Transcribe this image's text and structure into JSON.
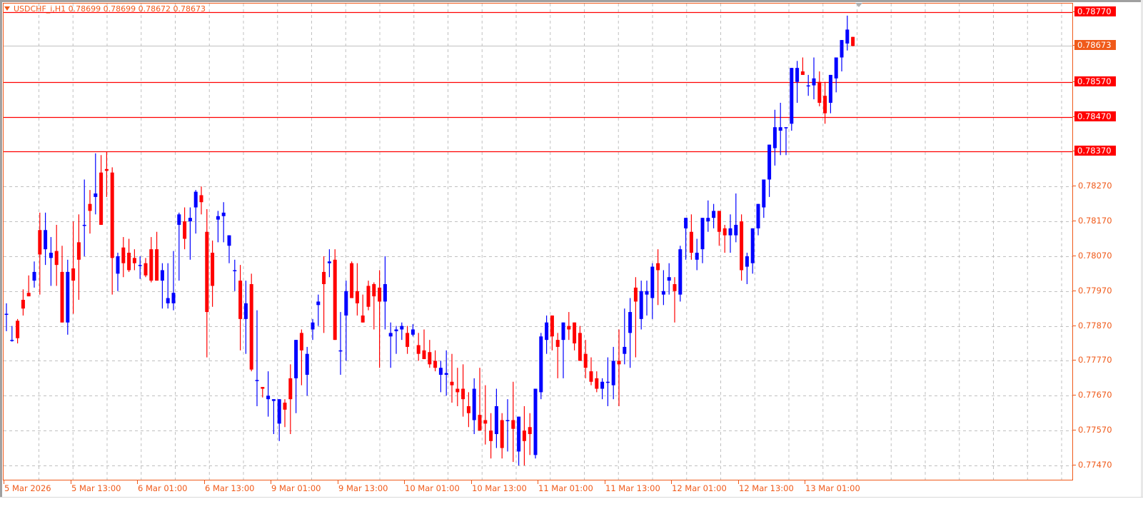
{
  "window": {
    "symbol": "USDCHF_i",
    "timeframe": "H1",
    "title": "USDCHF_i,H1  0.78699 0.78699 0.78672 0.78673",
    "ohlc_header": {
      "open": "0.78699",
      "high": "0.78699",
      "low": "0.78672",
      "close": "0.78673"
    }
  },
  "colors": {
    "bull": "#0000ff",
    "bear": "#ff0000",
    "axis": "#f05a1a",
    "grid": "#c0c0c0",
    "level_line": "#ff0000",
    "current_price_bg": "#f05a1a"
  },
  "chart_data": {
    "type": "candlestick",
    "title": "USDCHF_i,H1",
    "xlabel": "",
    "ylabel": "",
    "ylim": [
      0.7743,
      0.788
    ],
    "grid": true,
    "y_ticks": [
      "0.78770",
      "0.78673",
      "0.78570",
      "0.78470",
      "0.78370",
      "0.78270",
      "0.78170",
      "0.78070",
      "0.77970",
      "0.77870",
      "0.77770",
      "0.77670",
      "0.77570",
      "0.77470"
    ],
    "x_ticks": [
      "5 Mar 2026",
      "5 Mar 13:00",
      "6 Mar 01:00",
      "6 Mar 13:00",
      "9 Mar 01:00",
      "9 Mar 13:00",
      "10 Mar 01:00",
      "10 Mar 13:00",
      "11 Mar 01:00",
      "11 Mar 13:00",
      "12 Mar 01:00",
      "12 Mar 13:00",
      "13 Mar 01:00"
    ],
    "horizontal_levels": [
      {
        "price": "0.78770",
        "label": "0.78770"
      },
      {
        "price": "0.78570",
        "label": "0.78570"
      },
      {
        "price": "0.78470",
        "label": "0.78470"
      },
      {
        "price": "0.78370",
        "label": "0.78370"
      }
    ],
    "current_price": "0.78673",
    "candles_ohlc": [
      [
        0.77905,
        0.77935,
        0.77855,
        0.77905
      ],
      [
        0.7783,
        0.7787,
        0.77825,
        0.7783
      ],
      [
        0.77885,
        0.7789,
        0.7782,
        0.77835
      ],
      [
        0.77945,
        0.77975,
        0.779,
        0.7792
      ],
      [
        0.77965,
        0.78015,
        0.77955,
        0.77955
      ],
      [
        0.78,
        0.78055,
        0.7798,
        0.78025
      ],
      [
        0.78145,
        0.78195,
        0.7796,
        0.78075
      ],
      [
        0.7809,
        0.78195,
        0.78045,
        0.78145
      ],
      [
        0.78065,
        0.78125,
        0.77985,
        0.7808
      ],
      [
        0.78085,
        0.7816,
        0.77985,
        0.78045
      ],
      [
        0.78025,
        0.781,
        0.77885,
        0.7788
      ],
      [
        0.7788,
        0.7806,
        0.77845,
        0.78025
      ],
      [
        0.78035,
        0.7817,
        0.77905,
        0.78
      ],
      [
        0.7811,
        0.7819,
        0.77945,
        0.7806
      ],
      [
        0.7816,
        0.7829,
        0.7807,
        0.7816
      ],
      [
        0.7822,
        0.7826,
        0.78135,
        0.782
      ],
      [
        0.7824,
        0.78365,
        0.7819,
        0.7825
      ],
      [
        0.7831,
        0.7836,
        0.78195,
        0.7816
      ],
      [
        0.7832,
        0.7837,
        0.7824,
        0.78315
      ],
      [
        0.7831,
        0.78325,
        0.7796,
        0.78065
      ],
      [
        0.7802,
        0.7808,
        0.7797,
        0.7807
      ],
      [
        0.78095,
        0.78125,
        0.7801,
        0.7805
      ],
      [
        0.7808,
        0.7812,
        0.78025,
        0.7803
      ],
      [
        0.78065,
        0.7809,
        0.7803,
        0.7805
      ],
      [
        0.78045,
        0.7807,
        0.78005,
        0.78045
      ],
      [
        0.7805,
        0.78065,
        0.7801,
        0.78015
      ],
      [
        0.7809,
        0.78125,
        0.77995,
        0.78
      ],
      [
        0.7809,
        0.7814,
        0.7802,
        0.78
      ],
      [
        0.78,
        0.7805,
        0.7792,
        0.7803
      ],
      [
        0.77935,
        0.7805,
        0.7792,
        0.7795
      ],
      [
        0.77935,
        0.78085,
        0.77915,
        0.77965
      ],
      [
        0.7816,
        0.78195,
        0.78,
        0.7819
      ],
      [
        0.7817,
        0.7821,
        0.7809,
        0.7812
      ],
      [
        0.7817,
        0.7821,
        0.7806,
        0.7818
      ],
      [
        0.7821,
        0.7826,
        0.78135,
        0.78255
      ],
      [
        0.78245,
        0.7827,
        0.7819,
        0.78225
      ],
      [
        0.7814,
        0.78205,
        0.7778,
        0.7791
      ],
      [
        0.7808,
        0.78115,
        0.77925,
        0.77985
      ],
      [
        0.78175,
        0.782,
        0.7811,
        0.78185
      ],
      [
        0.78185,
        0.78225,
        0.7811,
        0.78195
      ],
      [
        0.781,
        0.7813,
        0.7805,
        0.7813
      ],
      [
        0.7803,
        0.7806,
        0.7797,
        0.7803
      ],
      [
        0.78,
        0.78045,
        0.778,
        0.7789
      ],
      [
        0.7789,
        0.78,
        0.7779,
        0.77935
      ],
      [
        0.7799,
        0.7802,
        0.7774,
        0.77745
      ],
      [
        0.77715,
        0.77915,
        0.7764,
        0.77715
      ],
      [
        0.77695,
        0.7768,
        0.77665,
        0.7769
      ],
      [
        0.7766,
        0.7774,
        0.7761,
        0.7767
      ],
      [
        0.77655,
        0.7766,
        0.7756,
        0.7766
      ],
      [
        0.7759,
        0.7764,
        0.7754,
        0.7766
      ],
      [
        0.7765,
        0.7766,
        0.7758,
        0.7763
      ],
      [
        0.7772,
        0.7776,
        0.7756,
        0.7766
      ],
      [
        0.7772,
        0.7779,
        0.7762,
        0.7783
      ],
      [
        0.7785,
        0.7786,
        0.777,
        0.778
      ],
      [
        0.7773,
        0.7781,
        0.7767,
        0.7779
      ],
      [
        0.7786,
        0.7789,
        0.7783,
        0.7788
      ],
      [
        0.7793,
        0.7796,
        0.7787,
        0.7794
      ],
      [
        0.78025,
        0.7807,
        0.7785,
        0.7799
      ],
      [
        0.7805,
        0.7809,
        0.7801,
        0.78055
      ],
      [
        0.7806,
        0.7809,
        0.7793,
        0.7783
      ],
      [
        0.778,
        0.7791,
        0.7773,
        0.778
      ],
      [
        0.779,
        0.78,
        0.7777,
        0.7797
      ],
      [
        0.7805,
        0.78055,
        0.7795,
        0.7795
      ],
      [
        0.7797,
        0.7805,
        0.779,
        0.77935
      ],
      [
        0.779,
        0.7796,
        0.7788,
        0.7788
      ],
      [
        0.77985,
        0.78,
        0.77915,
        0.77925
      ],
      [
        0.7799,
        0.77995,
        0.7786,
        0.77955
      ],
      [
        0.7798,
        0.7803,
        0.7775,
        0.7794
      ],
      [
        0.7794,
        0.7807,
        0.7786,
        0.7799
      ],
      [
        0.7784,
        0.7788,
        0.7775,
        0.7785
      ],
      [
        0.77855,
        0.7787,
        0.7779,
        0.7786
      ],
      [
        0.7786,
        0.7788,
        0.7783,
        0.7787
      ],
      [
        0.7785,
        0.7787,
        0.7779,
        0.7781
      ],
      [
        0.77845,
        0.77875,
        0.7784,
        0.7786
      ],
      [
        0.77815,
        0.7785,
        0.7777,
        0.7779
      ],
      [
        0.778,
        0.7786,
        0.77775,
        0.77775
      ],
      [
        0.77795,
        0.7783,
        0.7775,
        0.7776
      ],
      [
        0.7777,
        0.778,
        0.7774,
        0.7775
      ],
      [
        0.7773,
        0.7777,
        0.7768,
        0.7775
      ],
      [
        0.7773,
        0.778,
        0.7767,
        0.77735
      ],
      [
        0.7771,
        0.7779,
        0.7765,
        0.777
      ],
      [
        0.7769,
        0.7775,
        0.7764,
        0.7768
      ],
      [
        0.7769,
        0.7776,
        0.7761,
        0.7766
      ],
      [
        0.7764,
        0.7768,
        0.7758,
        0.7762
      ],
      [
        0.776,
        0.7772,
        0.7756,
        0.7769
      ],
      [
        0.77615,
        0.7775,
        0.7759,
        0.7757
      ],
      [
        0.776,
        0.777,
        0.7753,
        0.7759
      ],
      [
        0.7757,
        0.7762,
        0.7749,
        0.7754
      ],
      [
        0.7756,
        0.7769,
        0.7752,
        0.7764
      ],
      [
        0.776,
        0.7762,
        0.7749,
        0.7752
      ],
      [
        0.776,
        0.7766,
        0.7751,
        0.776
      ],
      [
        0.776,
        0.7771,
        0.7748,
        0.77575
      ],
      [
        0.7751,
        0.776,
        0.7747,
        0.7761
      ],
      [
        0.7757,
        0.7764,
        0.7747,
        0.7754
      ],
      [
        0.7758,
        0.7762,
        0.775,
        0.7756
      ],
      [
        0.775,
        0.7765,
        0.7749,
        0.7769
      ],
      [
        0.7768,
        0.7785,
        0.7766,
        0.7784
      ],
      [
        0.7783,
        0.779,
        0.7779,
        0.7788
      ],
      [
        0.779,
        0.7788,
        0.778,
        0.7784
      ],
      [
        0.7783,
        0.7785,
        0.7772,
        0.7781
      ],
      [
        0.7783,
        0.7785,
        0.7772,
        0.7788
      ],
      [
        0.7787,
        0.7791,
        0.7783,
        0.7786
      ],
      [
        0.7788,
        0.7787,
        0.778,
        0.7782
      ],
      [
        0.7785,
        0.7787,
        0.7781,
        0.7777
      ],
      [
        0.7779,
        0.7783,
        0.7772,
        0.7775
      ],
      [
        0.7774,
        0.7778,
        0.777,
        0.7771
      ],
      [
        0.7772,
        0.7774,
        0.7768,
        0.7769
      ],
      [
        0.7769,
        0.7772,
        0.7766,
        0.7771
      ],
      [
        0.7771,
        0.7778,
        0.7764,
        0.7771
      ],
      [
        0.777,
        0.7781,
        0.7766,
        0.7777
      ],
      [
        0.7777,
        0.7786,
        0.7764,
        0.7776
      ],
      [
        0.7779,
        0.7792,
        0.7776,
        0.7781
      ],
      [
        0.7785,
        0.7795,
        0.7775,
        0.7791
      ],
      [
        0.7798,
        0.7801,
        0.7778,
        0.7794
      ],
      [
        0.7789,
        0.78,
        0.7786,
        0.7797
      ],
      [
        0.7796,
        0.78,
        0.779,
        0.7797
      ],
      [
        0.7795,
        0.7805,
        0.7789,
        0.7804
      ],
      [
        0.7805,
        0.7809,
        0.7793,
        0.7803
      ],
      [
        0.7796,
        0.7803,
        0.7793,
        0.7797
      ],
      [
        0.78,
        0.7805,
        0.7796,
        0.7801
      ],
      [
        0.7799,
        0.7801,
        0.7788,
        0.7797
      ],
      [
        0.7796,
        0.781,
        0.7794,
        0.7809
      ],
      [
        0.7815,
        0.7818,
        0.7806,
        0.7818
      ],
      [
        0.7814,
        0.7819,
        0.7806,
        0.7808
      ],
      [
        0.7806,
        0.7812,
        0.7803,
        0.7808
      ],
      [
        0.7809,
        0.7816,
        0.7805,
        0.7818
      ],
      [
        0.7817,
        0.7823,
        0.7814,
        0.7818
      ],
      [
        0.7818,
        0.7822,
        0.7815,
        0.782
      ],
      [
        0.782,
        0.7817,
        0.781,
        0.7814
      ],
      [
        0.7815,
        0.7816,
        0.7808,
        0.7813
      ],
      [
        0.7813,
        0.7819,
        0.7808,
        0.7815
      ],
      [
        0.7813,
        0.7825,
        0.7811,
        0.7816
      ],
      [
        0.7817,
        0.7819,
        0.78,
        0.7803
      ],
      [
        0.7804,
        0.7808,
        0.7799,
        0.7807
      ],
      [
        0.7805,
        0.7814,
        0.7802,
        0.7815
      ],
      [
        0.7815,
        0.782,
        0.7813,
        0.7822
      ],
      [
        0.7821,
        0.7827,
        0.7818,
        0.7829
      ],
      [
        0.7829,
        0.7838,
        0.7824,
        0.7839
      ],
      [
        0.7838,
        0.7849,
        0.7833,
        0.7844
      ],
      [
        0.7843,
        0.7851,
        0.7836,
        0.7844
      ],
      [
        0.7844,
        0.7844,
        0.7836,
        0.7844
      ],
      [
        0.7845,
        0.7853,
        0.7843,
        0.7861
      ],
      [
        0.7857,
        0.7863,
        0.7851,
        0.7861
      ],
      [
        0.786,
        0.7864,
        0.786,
        0.7859
      ],
      [
        0.7856,
        0.7859,
        0.7853,
        0.7856
      ],
      [
        0.7856,
        0.7864,
        0.7852,
        0.7858
      ],
      [
        0.7857,
        0.786,
        0.785,
        0.7851
      ],
      [
        0.7853,
        0.7857,
        0.7845,
        0.7848
      ],
      [
        0.7851,
        0.7857,
        0.7848,
        0.7859
      ],
      [
        0.7858,
        0.7862,
        0.7854,
        0.7864
      ],
      [
        0.7864,
        0.7868,
        0.786,
        0.7869
      ],
      [
        0.7868,
        0.7876,
        0.7866,
        0.7872
      ],
      [
        0.78699,
        0.78699,
        0.78672,
        0.78673
      ]
    ]
  }
}
